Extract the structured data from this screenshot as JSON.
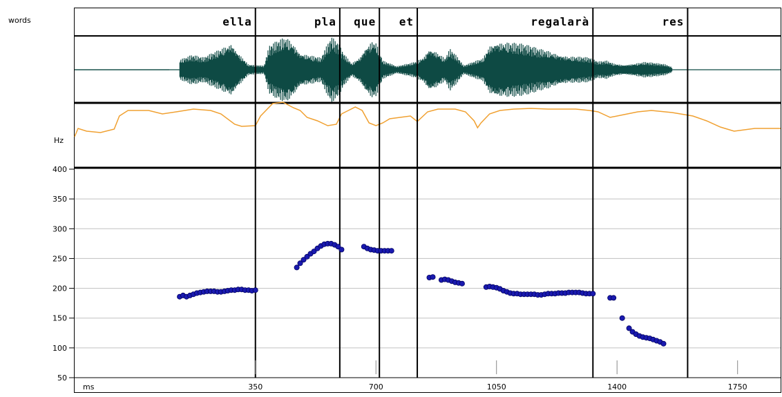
{
  "labels": {
    "tier": "words",
    "hz": "Hz",
    "time_unit": "ms"
  },
  "colors": {
    "waveform": "#0e4a44",
    "intensity": "#f0a030",
    "pitch_point": "#1a1ab0",
    "pitch_outline": "#000060",
    "grid": "#c0c0c0",
    "frame": "#000000"
  },
  "chart_data": {
    "type": "scatter",
    "xlabel": "ms",
    "ylabel": "Hz",
    "xlim": [
      -175,
      1875
    ],
    "ylim": [
      50,
      400
    ],
    "y_ticks": [
      400,
      350,
      300,
      250,
      200,
      150,
      100,
      50
    ],
    "x_ticks": [
      350,
      700,
      1050,
      1400,
      1750
    ],
    "words": [
      {
        "text": "ella",
        "start": 0,
        "end": 350
      },
      {
        "text": "pla",
        "start": 350,
        "end": 595
      },
      {
        "text": "que",
        "start": 595,
        "end": 710
      },
      {
        "text": "et",
        "start": 710,
        "end": 820
      },
      {
        "text": "regalarà",
        "start": 820,
        "end": 1330
      },
      {
        "text": "res",
        "start": 1330,
        "end": 1605
      }
    ],
    "boundaries": [
      350,
      595,
      710,
      820,
      1330,
      1605
    ],
    "series": [
      {
        "values": [
          [
            130,
            186
          ],
          [
            140,
            188
          ],
          [
            150,
            186
          ],
          [
            160,
            188
          ],
          [
            170,
            190
          ],
          [
            180,
            192
          ],
          [
            190,
            193
          ],
          [
            200,
            194
          ],
          [
            210,
            195
          ],
          [
            220,
            195
          ],
          [
            230,
            195
          ],
          [
            240,
            194
          ],
          [
            250,
            194
          ],
          [
            260,
            195
          ],
          [
            270,
            196
          ],
          [
            280,
            197
          ],
          [
            290,
            197
          ],
          [
            300,
            198
          ],
          [
            310,
            198
          ],
          [
            320,
            197
          ],
          [
            330,
            197
          ],
          [
            340,
            196
          ],
          [
            350,
            197
          ],
          [
            470,
            235
          ],
          [
            480,
            242
          ],
          [
            490,
            248
          ],
          [
            500,
            253
          ],
          [
            510,
            258
          ],
          [
            520,
            262
          ],
          [
            530,
            267
          ],
          [
            540,
            271
          ],
          [
            550,
            274
          ],
          [
            560,
            275
          ],
          [
            570,
            275
          ],
          [
            580,
            273
          ],
          [
            590,
            270
          ],
          [
            600,
            265
          ],
          [
            665,
            270
          ],
          [
            675,
            267
          ],
          [
            685,
            265
          ],
          [
            695,
            264
          ],
          [
            705,
            263
          ],
          [
            715,
            263
          ],
          [
            725,
            263
          ],
          [
            735,
            263
          ],
          [
            745,
            263
          ],
          [
            855,
            218
          ],
          [
            865,
            219
          ],
          [
            890,
            214
          ],
          [
            900,
            215
          ],
          [
            910,
            214
          ],
          [
            920,
            212
          ],
          [
            930,
            210
          ],
          [
            940,
            209
          ],
          [
            950,
            208
          ],
          [
            1020,
            202
          ],
          [
            1030,
            203
          ],
          [
            1040,
            202
          ],
          [
            1050,
            201
          ],
          [
            1060,
            199
          ],
          [
            1070,
            196
          ],
          [
            1080,
            194
          ],
          [
            1090,
            192
          ],
          [
            1100,
            191
          ],
          [
            1110,
            191
          ],
          [
            1120,
            190
          ],
          [
            1130,
            190
          ],
          [
            1140,
            190
          ],
          [
            1150,
            190
          ],
          [
            1160,
            190
          ],
          [
            1170,
            189
          ],
          [
            1180,
            189
          ],
          [
            1190,
            190
          ],
          [
            1200,
            191
          ],
          [
            1210,
            191
          ],
          [
            1220,
            191
          ],
          [
            1230,
            192
          ],
          [
            1240,
            192
          ],
          [
            1250,
            192
          ],
          [
            1260,
            193
          ],
          [
            1270,
            193
          ],
          [
            1280,
            193
          ],
          [
            1290,
            193
          ],
          [
            1300,
            192
          ],
          [
            1310,
            191
          ],
          [
            1320,
            191
          ],
          [
            1330,
            191
          ],
          [
            1380,
            184
          ],
          [
            1390,
            184
          ],
          [
            1415,
            150
          ],
          [
            1435,
            133
          ],
          [
            1445,
            127
          ],
          [
            1455,
            123
          ],
          [
            1465,
            120
          ],
          [
            1475,
            118
          ],
          [
            1485,
            117
          ],
          [
            1495,
            116
          ],
          [
            1505,
            114
          ],
          [
            1515,
            112
          ],
          [
            1525,
            110
          ],
          [
            1535,
            107
          ]
        ]
      }
    ]
  }
}
